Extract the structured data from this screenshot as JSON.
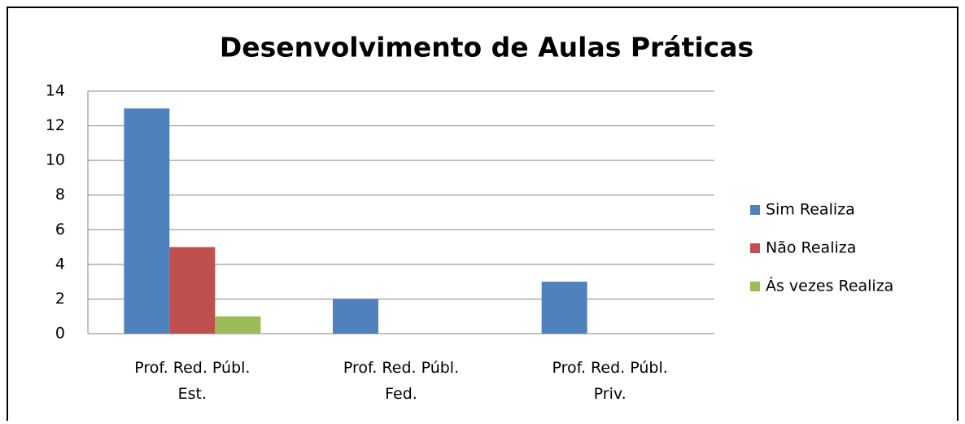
{
  "chart_data": {
    "type": "bar",
    "title": "Desenvolvimento de Aulas Práticas",
    "categories": [
      "Prof. Red. Públ. Est.",
      "Prof. Red. Públ. Fed.",
      "Prof. Red. Públ. Priv."
    ],
    "series": [
      {
        "name": "Sim Realiza",
        "color": "#4f81bd",
        "values": [
          13,
          2,
          3
        ]
      },
      {
        "name": "Não Realiza",
        "color": "#c0504d",
        "values": [
          5,
          0,
          0
        ]
      },
      {
        "name": "Ás vezes Realiza",
        "color": "#9bbb59",
        "values": [
          1,
          0,
          0
        ]
      }
    ],
    "ylim": [
      0,
      14
    ],
    "yticks": [
      0,
      2,
      4,
      6,
      8,
      10,
      12,
      14
    ],
    "grid": true,
    "legend": "right"
  }
}
